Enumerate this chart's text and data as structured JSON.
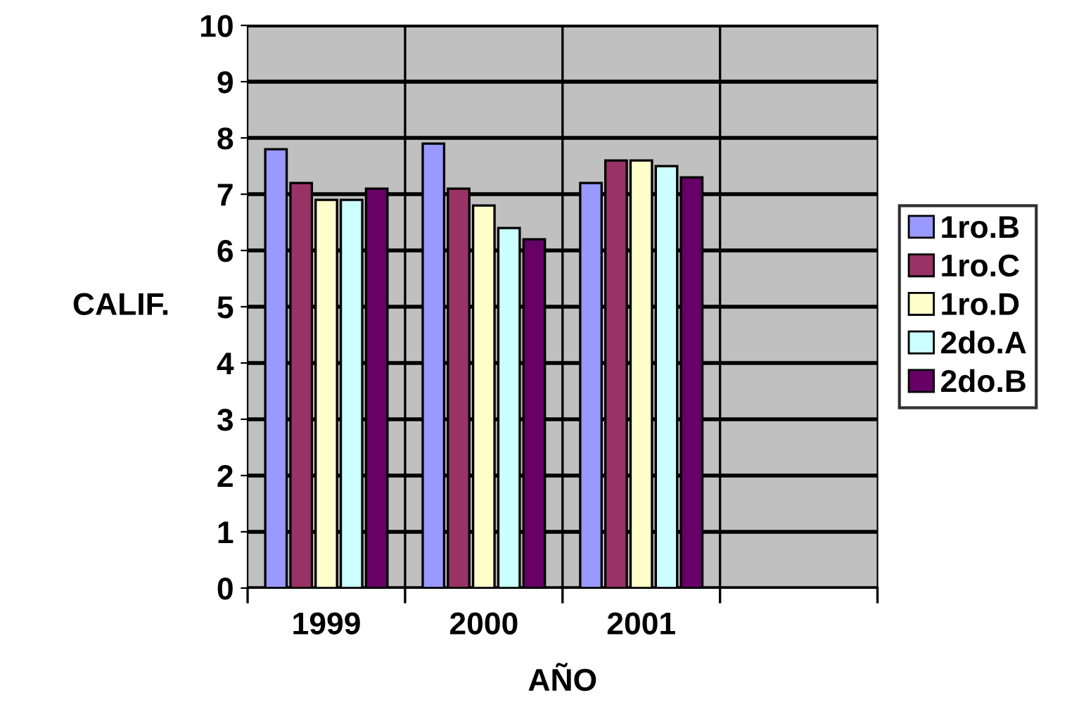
{
  "chart_data": {
    "type": "bar",
    "xlabel": "AÑO",
    "ylabel": "CALIF.",
    "categories": [
      "1999",
      "2000",
      "2001",
      null
    ],
    "series": [
      {
        "name": "1ro.B",
        "color": "#9999ff",
        "values": [
          7.8,
          7.9,
          7.2,
          null
        ]
      },
      {
        "name": "1ro.C",
        "color": "#993366",
        "values": [
          7.2,
          7.1,
          7.6,
          null
        ]
      },
      {
        "name": "1ro.D",
        "color": "#ffffcc",
        "values": [
          6.9,
          6.8,
          7.6,
          null
        ]
      },
      {
        "name": "2do.A",
        "color": "#ccffff",
        "values": [
          6.9,
          6.4,
          7.5,
          null
        ]
      },
      {
        "name": "2do.B",
        "color": "#660066",
        "values": [
          7.1,
          6.2,
          7.3,
          null
        ]
      }
    ],
    "ylim": [
      0,
      10
    ],
    "yticks": [
      0,
      1,
      2,
      3,
      4,
      5,
      6,
      7,
      8,
      9,
      10
    ],
    "grid": true,
    "legend": "right"
  }
}
